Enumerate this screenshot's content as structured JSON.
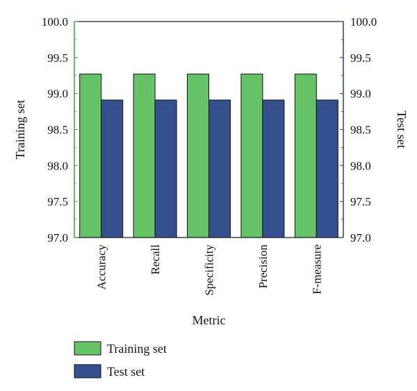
{
  "chart_data": {
    "type": "bar",
    "categories": [
      "Accuracy",
      "Recall",
      "Specificity",
      "Precision",
      "F-measure"
    ],
    "series": [
      {
        "name": "Training set",
        "axis": "left",
        "color": "#66c266",
        "values": [
          99.27,
          99.27,
          99.27,
          99.27,
          99.27
        ]
      },
      {
        "name": "Test set",
        "axis": "right",
        "color": "#34508f",
        "values": [
          98.91,
          98.91,
          98.91,
          98.91,
          98.91
        ]
      }
    ],
    "xlabel": "Metric",
    "ylabel": "Training set",
    "y2label": "Test set",
    "ylim": [
      97.0,
      100.0
    ],
    "y2lim": [
      97.0,
      100.0
    ],
    "yticks": [
      "97.0",
      "97.5",
      "98.0",
      "98.5",
      "99.0",
      "99.5",
      "100.0"
    ],
    "left_axis_color": "#4caf50",
    "right_axis_color": "#34508f",
    "grid": false,
    "legend_position": "bottom-left"
  }
}
